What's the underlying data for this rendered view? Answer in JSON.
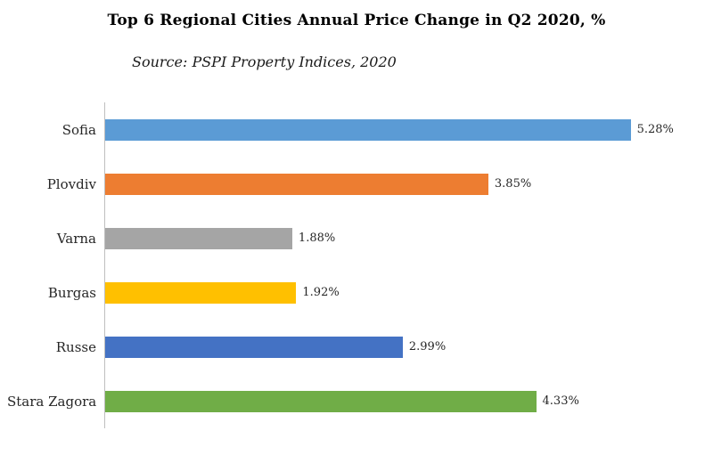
{
  "chart_data": {
    "type": "bar",
    "orientation": "horizontal",
    "title": "Top 6 Regional Cities Annual Price Change in Q2 2020, %",
    "subtitle": "Source: PSPI Property Indices, 2020",
    "categories": [
      "Sofia",
      "Plovdiv",
      "Varna",
      "Burgas",
      "Russe",
      "Stara Zagora"
    ],
    "values": [
      5.28,
      3.85,
      1.88,
      1.92,
      2.99,
      4.33
    ],
    "value_labels": [
      "5.28%",
      "3.85%",
      "1.88%",
      "1.92%",
      "2.99%",
      "4.33%"
    ],
    "colors": [
      "#5B9BD5",
      "#ED7D31",
      "#A5A5A5",
      "#FFC000",
      "#4472C4",
      "#70AD47"
    ],
    "xlabel": "",
    "ylabel": "",
    "xlim": [
      0,
      6
    ],
    "grid": false,
    "legend": false,
    "axis_line_color": "#BFBFBF"
  }
}
